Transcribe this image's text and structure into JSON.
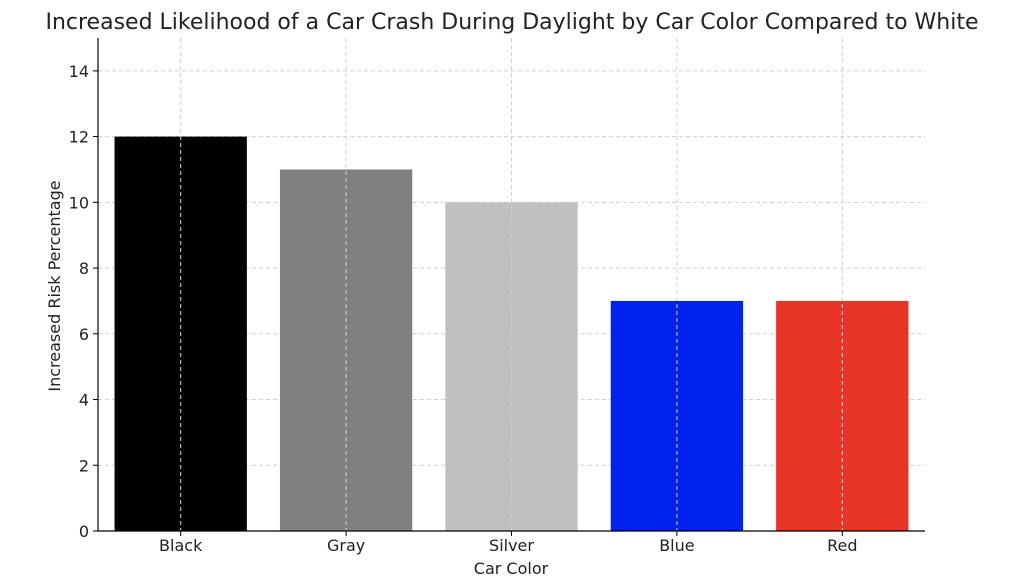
{
  "chart_data": {
    "type": "bar",
    "title": "Increased Likelihood of a Car Crash During Daylight by Car Color Compared to White",
    "xlabel": "Car Color",
    "ylabel": "Increased Risk Percentage",
    "categories": [
      "Black",
      "Gray",
      "Silver",
      "Blue",
      "Red"
    ],
    "values": [
      12,
      11,
      10,
      7,
      7
    ],
    "colors": [
      "#000000",
      "#808080",
      "#c0c0c0",
      "#0022ee",
      "#e83426"
    ],
    "ylim": [
      0,
      15
    ],
    "yticks": [
      0,
      2,
      4,
      6,
      8,
      10,
      12,
      14
    ],
    "grid": true,
    "legend": "none"
  }
}
